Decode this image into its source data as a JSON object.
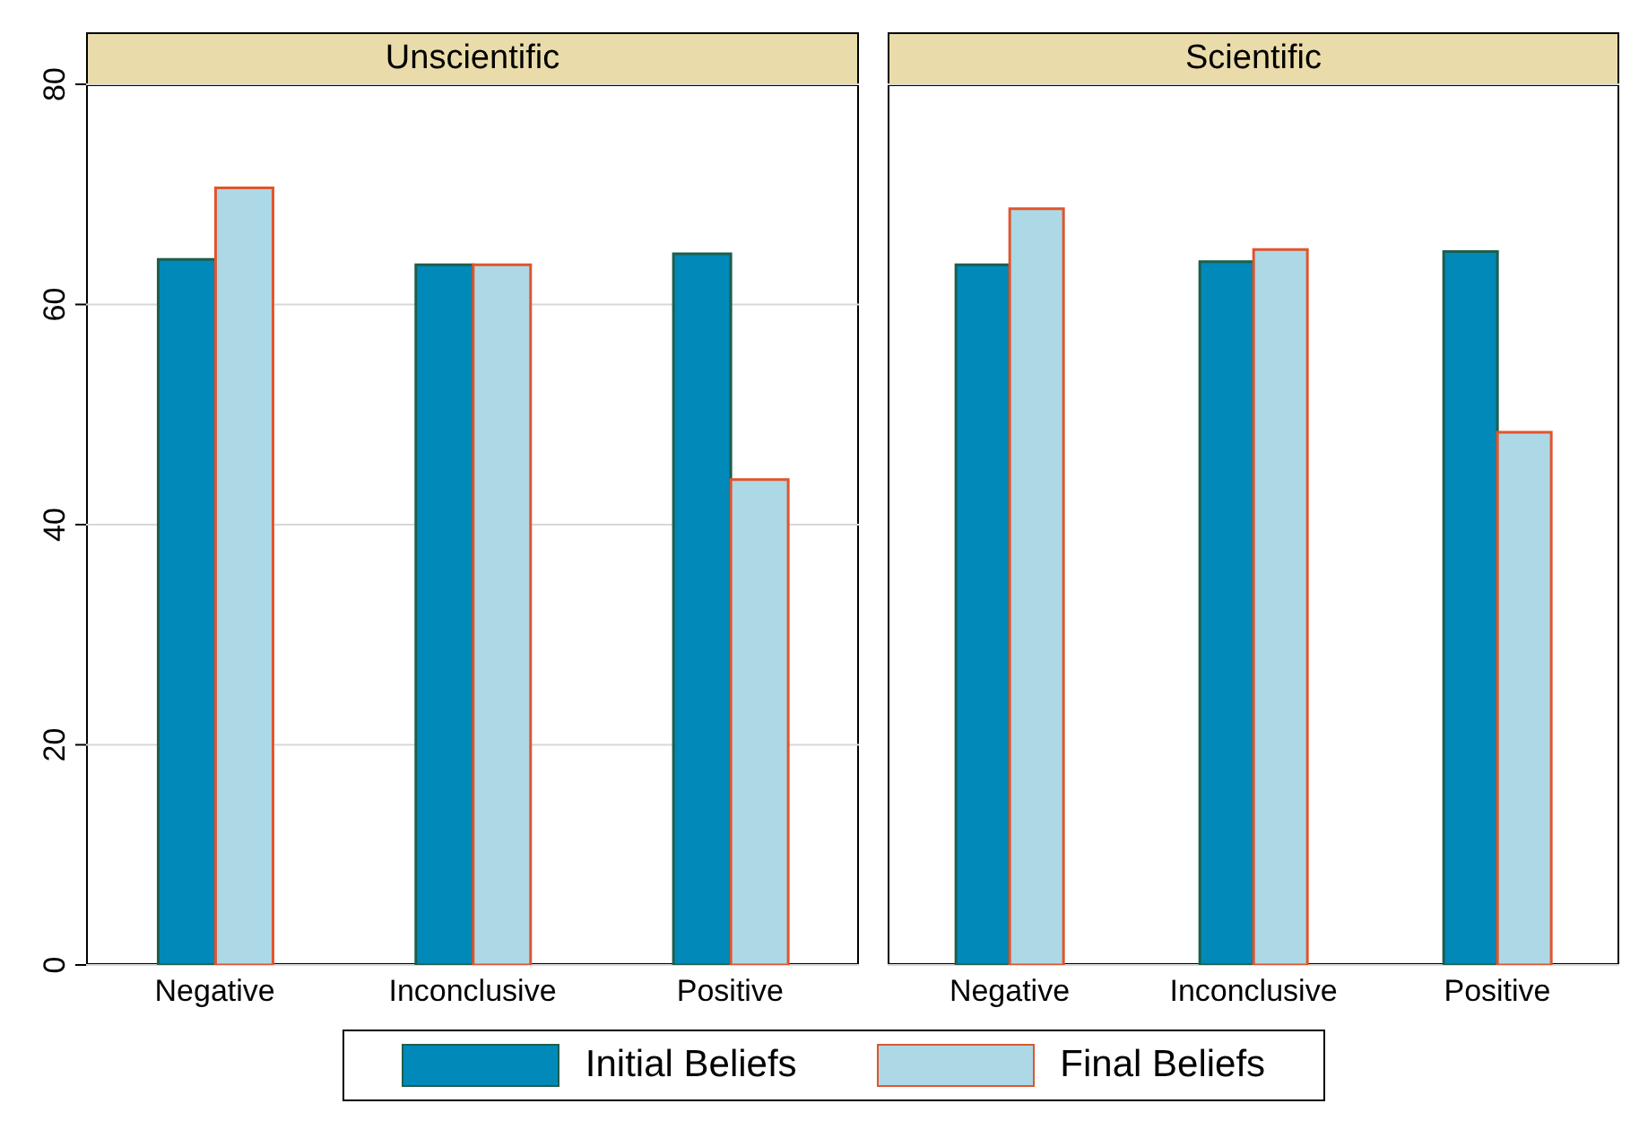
{
  "chart_data": [
    {
      "type": "bar",
      "title": "Unscientific",
      "categories": [
        "Negative",
        "Inconclusive",
        "Positive"
      ],
      "series": [
        {
          "name": "Initial Beliefs",
          "color": "#0089b9",
          "values": [
            64.1,
            63.6,
            64.6
          ]
        },
        {
          "name": "Final Beliefs",
          "color": "#add8e6",
          "values": [
            70.6,
            63.6,
            44.1
          ]
        }
      ],
      "ylim": [
        0,
        80
      ],
      "yticks": [
        0,
        20,
        40,
        60,
        80
      ],
      "grid": "y",
      "legend": "bottom"
    },
    {
      "type": "bar",
      "title": "Scientific",
      "categories": [
        "Negative",
        "Inconclusive",
        "Positive"
      ],
      "series": [
        {
          "color": "#0089b9",
          "values": [
            63.6,
            63.9,
            64.8
          ]
        },
        {
          "color": "#add8e6",
          "values": [
            68.7,
            65.0,
            48.4
          ]
        }
      ],
      "ylim": [
        0,
        80
      ],
      "yticks": [
        0,
        20,
        40,
        60,
        80
      ],
      "grid": "y",
      "tick_labels": "x"
    }
  ]
}
